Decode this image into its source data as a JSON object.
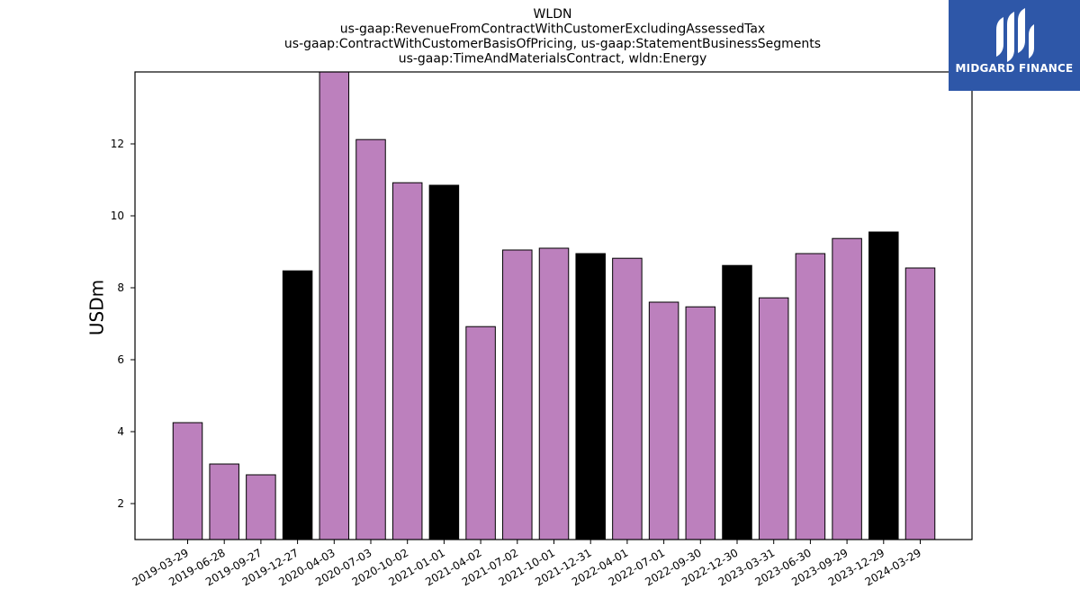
{
  "chart_data": {
    "type": "bar",
    "title_lines": [
      "WLDN",
      "us-gaap:RevenueFromContractWithCustomerExcludingAssessedTax",
      "us-gaap:ContractWithCustomerBasisOfPricing, us-gaap:StatementBusinessSegments",
      "us-gaap:TimeAndMaterialsContract, wldn:Energy"
    ],
    "xlabel": "",
    "ylabel": "USDm",
    "ylim": [
      1.0,
      14.0
    ],
    "yticks": [
      2,
      4,
      6,
      8,
      10,
      12
    ],
    "grid": false,
    "categories": [
      "2019-03-29",
      "2019-06-28",
      "2019-09-27",
      "2019-12-27",
      "2020-04-03",
      "2020-07-03",
      "2020-10-02",
      "2021-01-01",
      "2021-04-02",
      "2021-07-02",
      "2021-10-01",
      "2021-12-31",
      "2022-04-01",
      "2022-07-01",
      "2022-09-30",
      "2022-12-30",
      "2023-03-31",
      "2023-06-30",
      "2023-09-29",
      "2023-12-29",
      "2024-03-29"
    ],
    "values": [
      4.25,
      3.1,
      2.8,
      8.47,
      14.0,
      12.12,
      10.92,
      10.85,
      6.92,
      9.05,
      9.1,
      8.95,
      8.82,
      7.6,
      7.47,
      8.62,
      7.72,
      8.95,
      9.37,
      9.55,
      8.55
    ],
    "bar_colors": [
      "#bc80bd",
      "#bc80bd",
      "#bc80bd",
      "#000000",
      "#bc80bd",
      "#bc80bd",
      "#bc80bd",
      "#000000",
      "#bc80bd",
      "#bc80bd",
      "#bc80bd",
      "#000000",
      "#bc80bd",
      "#bc80bd",
      "#bc80bd",
      "#000000",
      "#bc80bd",
      "#bc80bd",
      "#bc80bd",
      "#000000",
      "#bc80bd"
    ],
    "colors": {
      "quarter_bar": "#bc80bd",
      "year_end_bar": "#000000",
      "edge": "#000000"
    }
  },
  "logo": {
    "text": "MIDGARD FINANCE",
    "background": "#2e57a8",
    "icon": "midgard-logo-icon"
  }
}
